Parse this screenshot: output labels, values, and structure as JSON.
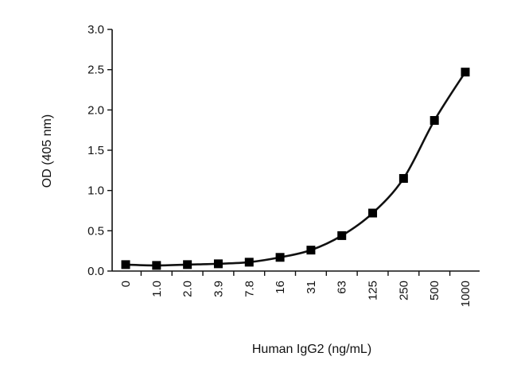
{
  "chart_data": {
    "type": "line",
    "title": "",
    "xlabel": "Human IgG2 (ng/mL)",
    "ylabel": "OD (405 nm)",
    "categories": [
      "0",
      "1.0",
      "2.0",
      "3.9",
      "7.8",
      "16",
      "31",
      "63",
      "125",
      "250",
      "500",
      "1000"
    ],
    "y_ticks": [
      "0.0",
      "0.5",
      "1.0",
      "1.5",
      "2.0",
      "2.5",
      "3.0"
    ],
    "ylim": [
      0,
      3.0
    ],
    "grid": false,
    "legend": "none",
    "series": [
      {
        "values": [
          0.08,
          0.07,
          0.08,
          0.09,
          0.11,
          0.17,
          0.26,
          0.44,
          0.72,
          1.15,
          1.87,
          2.47
        ]
      }
    ],
    "colors": {
      "line": "#111111",
      "marker": "#000000",
      "axis": "#111111"
    },
    "marker": "square"
  }
}
